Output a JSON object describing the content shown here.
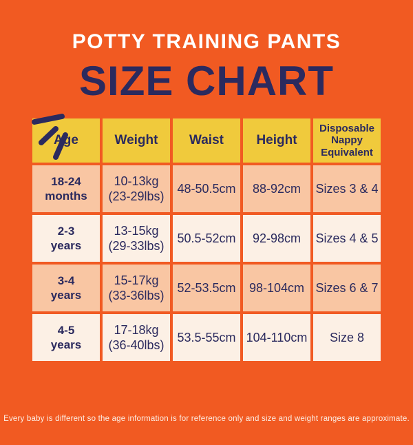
{
  "page": {
    "eyebrow": "POTTY TRAINING PANTS",
    "title": "SIZE CHART",
    "footnote": "Every baby is different so the age information is for reference only and size and weight ranges are approximate."
  },
  "colors": {
    "background_orange": "#F15A22",
    "header_yellow": "#F0CA3C",
    "row_peach": "#F9C6A3",
    "row_cream": "#FCF0E5",
    "text_navy": "#2B2A5E",
    "text_white": "#FFFFFF"
  },
  "chart_data": {
    "type": "table",
    "title": "Potty Training Pants Size Chart",
    "columns": [
      "Age",
      "Weight",
      "Waist",
      "Height",
      "Disposable Nappy Equivalent"
    ],
    "rows": [
      [
        "18-24\nmonths",
        "10-13kg\n(23-29lbs)",
        "48-50.5cm",
        "88-92cm",
        "Sizes 3 & 4"
      ],
      [
        "2-3\nyears",
        "13-15kg\n(29-33lbs)",
        "50.5-52cm",
        "92-98cm",
        "Sizes 4 & 5"
      ],
      [
        "3-4\nyears",
        "15-17kg\n(33-36lbs)",
        "52-53.5cm",
        "98-104cm",
        "Sizes 6 & 7"
      ],
      [
        "4-5\nyears",
        "17-18kg\n(36-40lbs)",
        "53.5-55cm",
        "104-110cm",
        "Size 8"
      ]
    ]
  }
}
